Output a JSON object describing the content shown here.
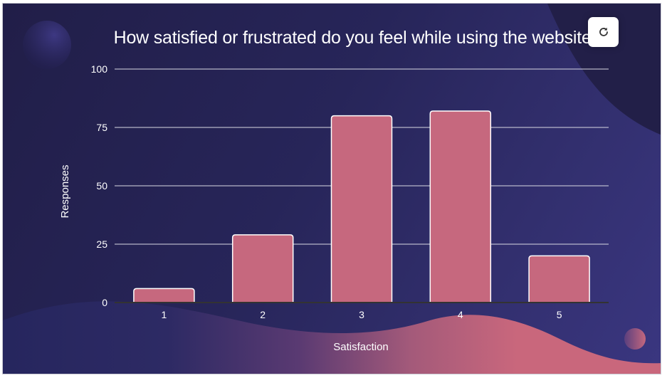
{
  "chart_data": {
    "type": "bar",
    "title": "How satisfied or frustrated do you feel while using the website?",
    "xlabel": "Satisfaction",
    "ylabel": "Responses",
    "categories": [
      "1",
      "2",
      "3",
      "4",
      "5"
    ],
    "values": [
      6,
      29,
      80,
      82,
      20
    ],
    "ylim": [
      0,
      100
    ],
    "yticks": [
      "0",
      "25",
      "50",
      "75",
      "100"
    ],
    "grid": true,
    "legend": "none",
    "bar_color": "#c6687e"
  },
  "toolbar": {
    "refresh_icon": "refresh-icon"
  },
  "colors": {
    "background_dark": "#211e48",
    "background_light": "#3a3680",
    "bar": "#c6687e",
    "wave_pink": "#c9677c",
    "text": "#ffffff"
  }
}
